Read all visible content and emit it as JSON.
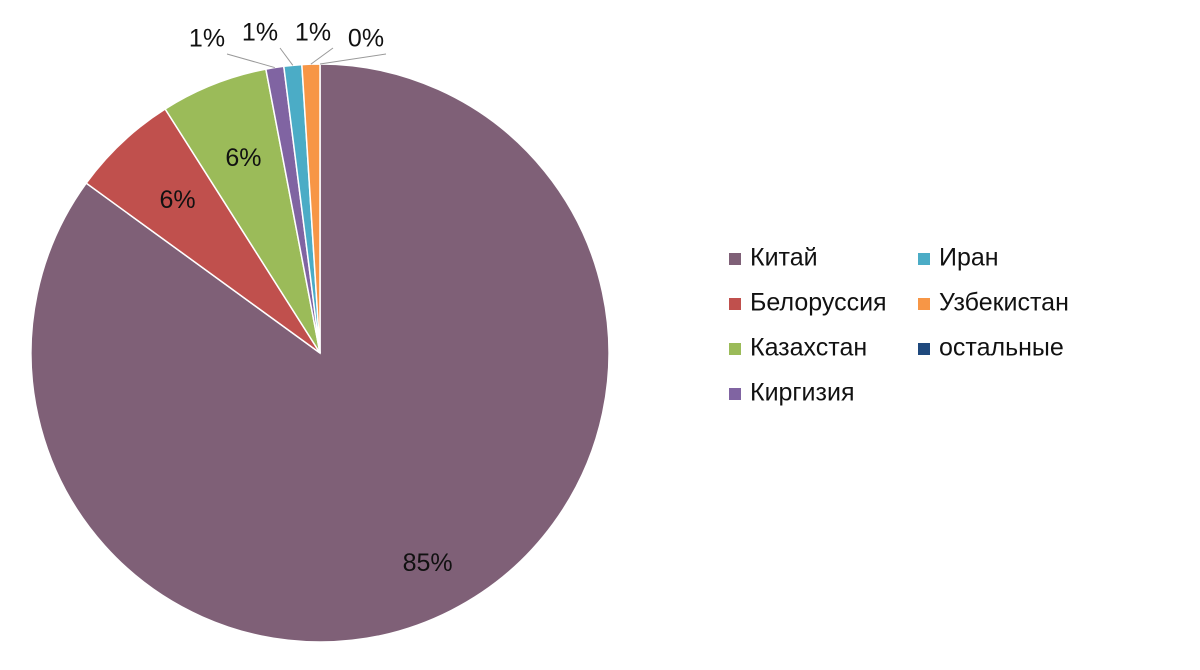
{
  "chart_data": {
    "type": "pie",
    "categories": [
      "Китай",
      "Белоруссия",
      "Казахстан",
      "Киргизия",
      "Иран",
      "Узбекистан",
      "остальные"
    ],
    "values": [
      85,
      6,
      6,
      1,
      1,
      1,
      0
    ],
    "value_labels": [
      "85%",
      "6%",
      "6%",
      "1%",
      "1%",
      "1%",
      "0%"
    ],
    "colors": [
      "#7f6077",
      "#c0504d",
      "#9bbb59",
      "#8064a2",
      "#4bacc6",
      "#f79646",
      "#1f497d"
    ],
    "legend": "right"
  }
}
